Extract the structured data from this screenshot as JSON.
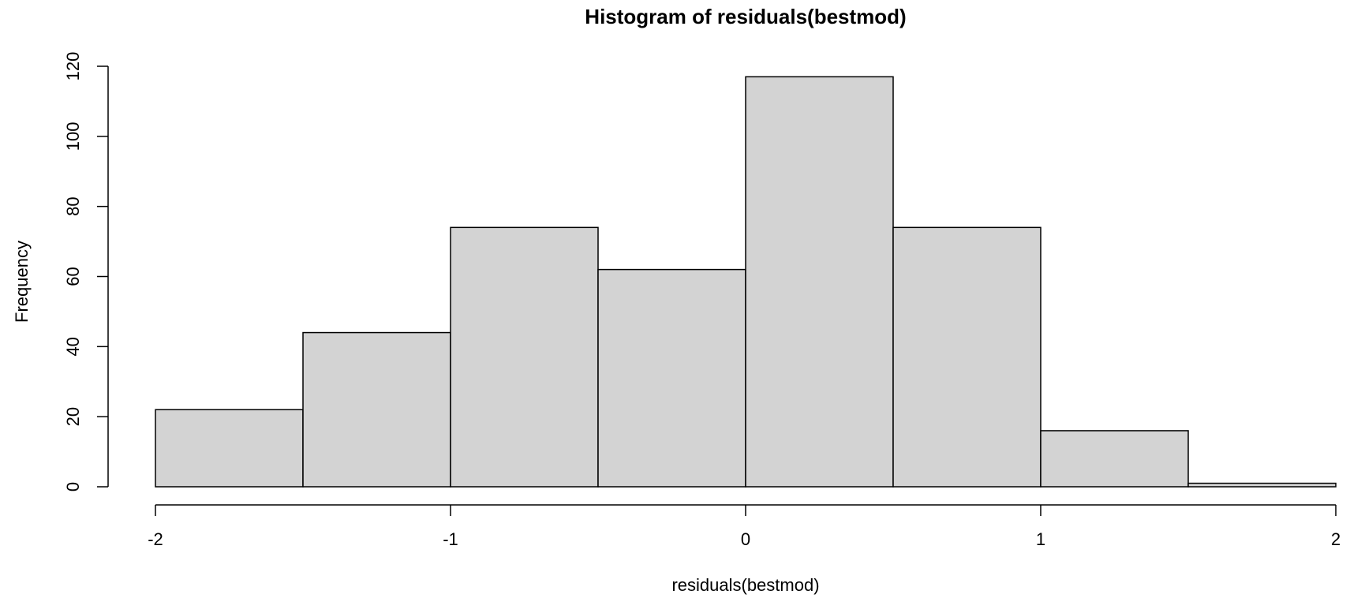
{
  "chart_data": {
    "type": "bar",
    "title": "Histogram of residuals(bestmod)",
    "xlabel": "residuals(bestmod)",
    "ylabel": "Frequency",
    "bins": [
      {
        "start": -2.0,
        "end": -1.5,
        "count": 22
      },
      {
        "start": -1.5,
        "end": -1.0,
        "count": 44
      },
      {
        "start": -1.0,
        "end": -0.5,
        "count": 74
      },
      {
        "start": -0.5,
        "end": 0.0,
        "count": 62
      },
      {
        "start": 0.0,
        "end": 0.5,
        "count": 117
      },
      {
        "start": 0.5,
        "end": 1.0,
        "count": 74
      },
      {
        "start": 1.0,
        "end": 1.5,
        "count": 16
      },
      {
        "start": 1.5,
        "end": 2.0,
        "count": 1
      }
    ],
    "xlim": [
      -2,
      2
    ],
    "ylim": [
      0,
      120
    ],
    "x_ticks": [
      "-2",
      "-1",
      "0",
      "1",
      "2"
    ],
    "y_ticks": [
      "0",
      "20",
      "40",
      "60",
      "80",
      "100",
      "120"
    ],
    "bar_fill": "#d3d3d3",
    "bar_stroke": "#000000",
    "grid": false,
    "legend": "none"
  }
}
